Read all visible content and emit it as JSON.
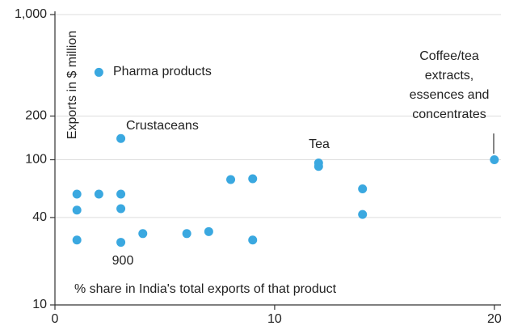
{
  "chart_data": {
    "type": "scatter",
    "y_label": "Exports in $ million",
    "x_label": "% share in  India's total exports of that product",
    "x": [
      2,
      3,
      12,
      12,
      20,
      1,
      2,
      3,
      1,
      3,
      8,
      9,
      14,
      14,
      1,
      3,
      4,
      6,
      7,
      9
    ],
    "series": [
      {
        "color": "#3aa8e0",
        "values": [
          400,
          140,
          95,
          90,
          100,
          58,
          58,
          58,
          45,
          46,
          73,
          74,
          63,
          42,
          28,
          27,
          31,
          31,
          32,
          28
        ]
      }
    ],
    "annotations": [
      "Pharma products",
      "Crustaceans",
      "Tea",
      [
        "Coffee/tea",
        "extracts,",
        "essences and",
        "concentrates"
      ],
      "900"
    ],
    "xlim": [
      0,
      20.3
    ],
    "xticks": [
      0,
      10,
      20
    ],
    "ylim": [
      10,
      1000
    ],
    "yscale": "log",
    "yticks": [
      10,
      40,
      100,
      200,
      {
        "value": 1000,
        "label": "1,000"
      }
    ],
    "grid": true
  }
}
